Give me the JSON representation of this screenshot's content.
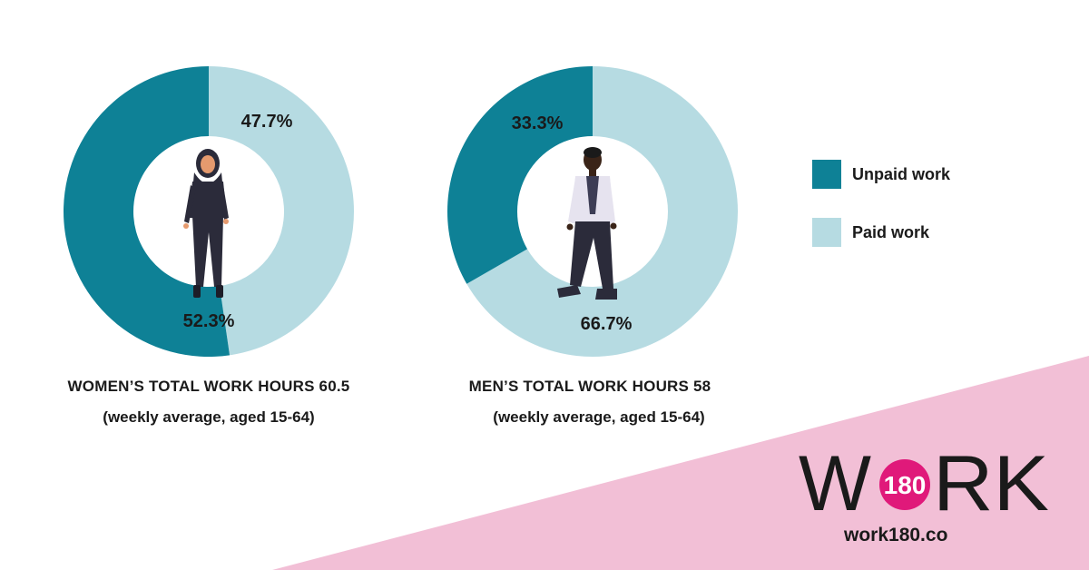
{
  "colors": {
    "unpaid": "#0e8196",
    "paid": "#b6dbe2",
    "pink": "#f2bfd6",
    "brand_badge": "#e0197a"
  },
  "chart_data": [
    {
      "type": "pie",
      "title": "WOMEN’S TOTAL WORK HOURS 60.5",
      "subtitle": "(weekly average, aged 15-64)",
      "slices": [
        {
          "name": "Paid work",
          "value": 47.7,
          "label": "47.7%"
        },
        {
          "name": "Unpaid work",
          "value": 52.3,
          "label": "52.3%"
        }
      ],
      "icon": "woman-figure-icon"
    },
    {
      "type": "pie",
      "title": "MEN’S TOTAL WORK HOURS 58",
      "subtitle": "(weekly average, aged 15-64)",
      "slices": [
        {
          "name": "Paid work",
          "value": 66.7,
          "label": "66.7%"
        },
        {
          "name": "Unpaid work",
          "value": 33.3,
          "label": "33.3%"
        }
      ],
      "icon": "man-figure-icon"
    }
  ],
  "legend": [
    {
      "label": "Unpaid work",
      "color": "#0e8196"
    },
    {
      "label": "Paid work",
      "color": "#b6dbe2"
    }
  ],
  "brand": {
    "logo_left": "W",
    "logo_badge": "180",
    "logo_right": "RK",
    "url": "work180.co"
  }
}
